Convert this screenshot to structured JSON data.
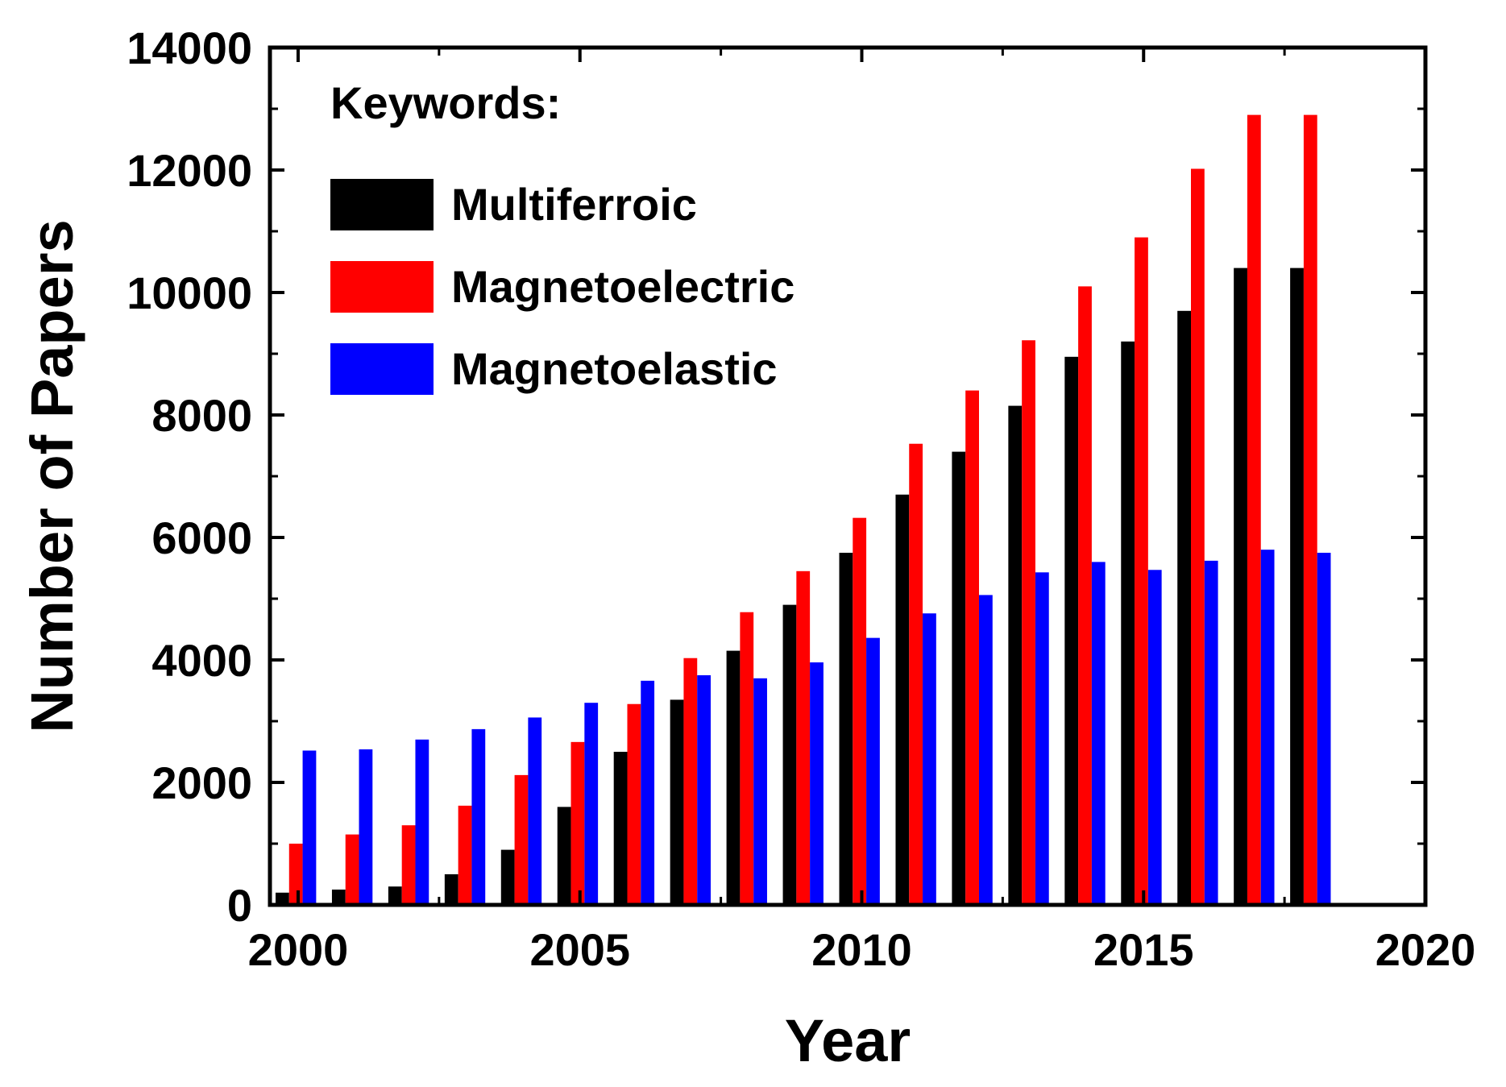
{
  "chart_data": {
    "type": "bar",
    "title": "",
    "xlabel": "Year",
    "ylabel": "Number of Papers",
    "xlim": [
      1999.5,
      2020
    ],
    "ylim": [
      0,
      14000
    ],
    "x_ticks": [
      2000,
      2005,
      2010,
      2015,
      2020
    ],
    "y_ticks": [
      0,
      2000,
      4000,
      6000,
      8000,
      10000,
      12000,
      14000
    ],
    "legend": {
      "title": "Keywords:",
      "position": "top-left"
    },
    "categories": [
      2000,
      2001,
      2002,
      2003,
      2004,
      2005,
      2006,
      2007,
      2008,
      2009,
      2010,
      2011,
      2012,
      2013,
      2014,
      2015,
      2016,
      2017,
      2018
    ],
    "series": [
      {
        "name": "Multiferroic",
        "color": "#000000",
        "values": [
          200,
          250,
          300,
          500,
          900,
          1600,
          2500,
          3350,
          4150,
          4900,
          5750,
          6700,
          7400,
          8150,
          8950,
          9200,
          9700,
          10400,
          10400
        ]
      },
      {
        "name": "Magnetoelectric",
        "color": "#ff0000",
        "values": [
          1000,
          1150,
          1300,
          1620,
          2120,
          2660,
          3280,
          4030,
          4780,
          5450,
          6320,
          7530,
          8400,
          9220,
          10100,
          10900,
          12020,
          12900,
          12900
        ]
      },
      {
        "name": "Magnetoelastic",
        "color": "#0000ff",
        "values": [
          2520,
          2540,
          2700,
          2870,
          3060,
          3300,
          3660,
          3750,
          3700,
          3960,
          4360,
          4760,
          5060,
          5430,
          5600,
          5470,
          5620,
          5800,
          5750
        ]
      }
    ]
  }
}
